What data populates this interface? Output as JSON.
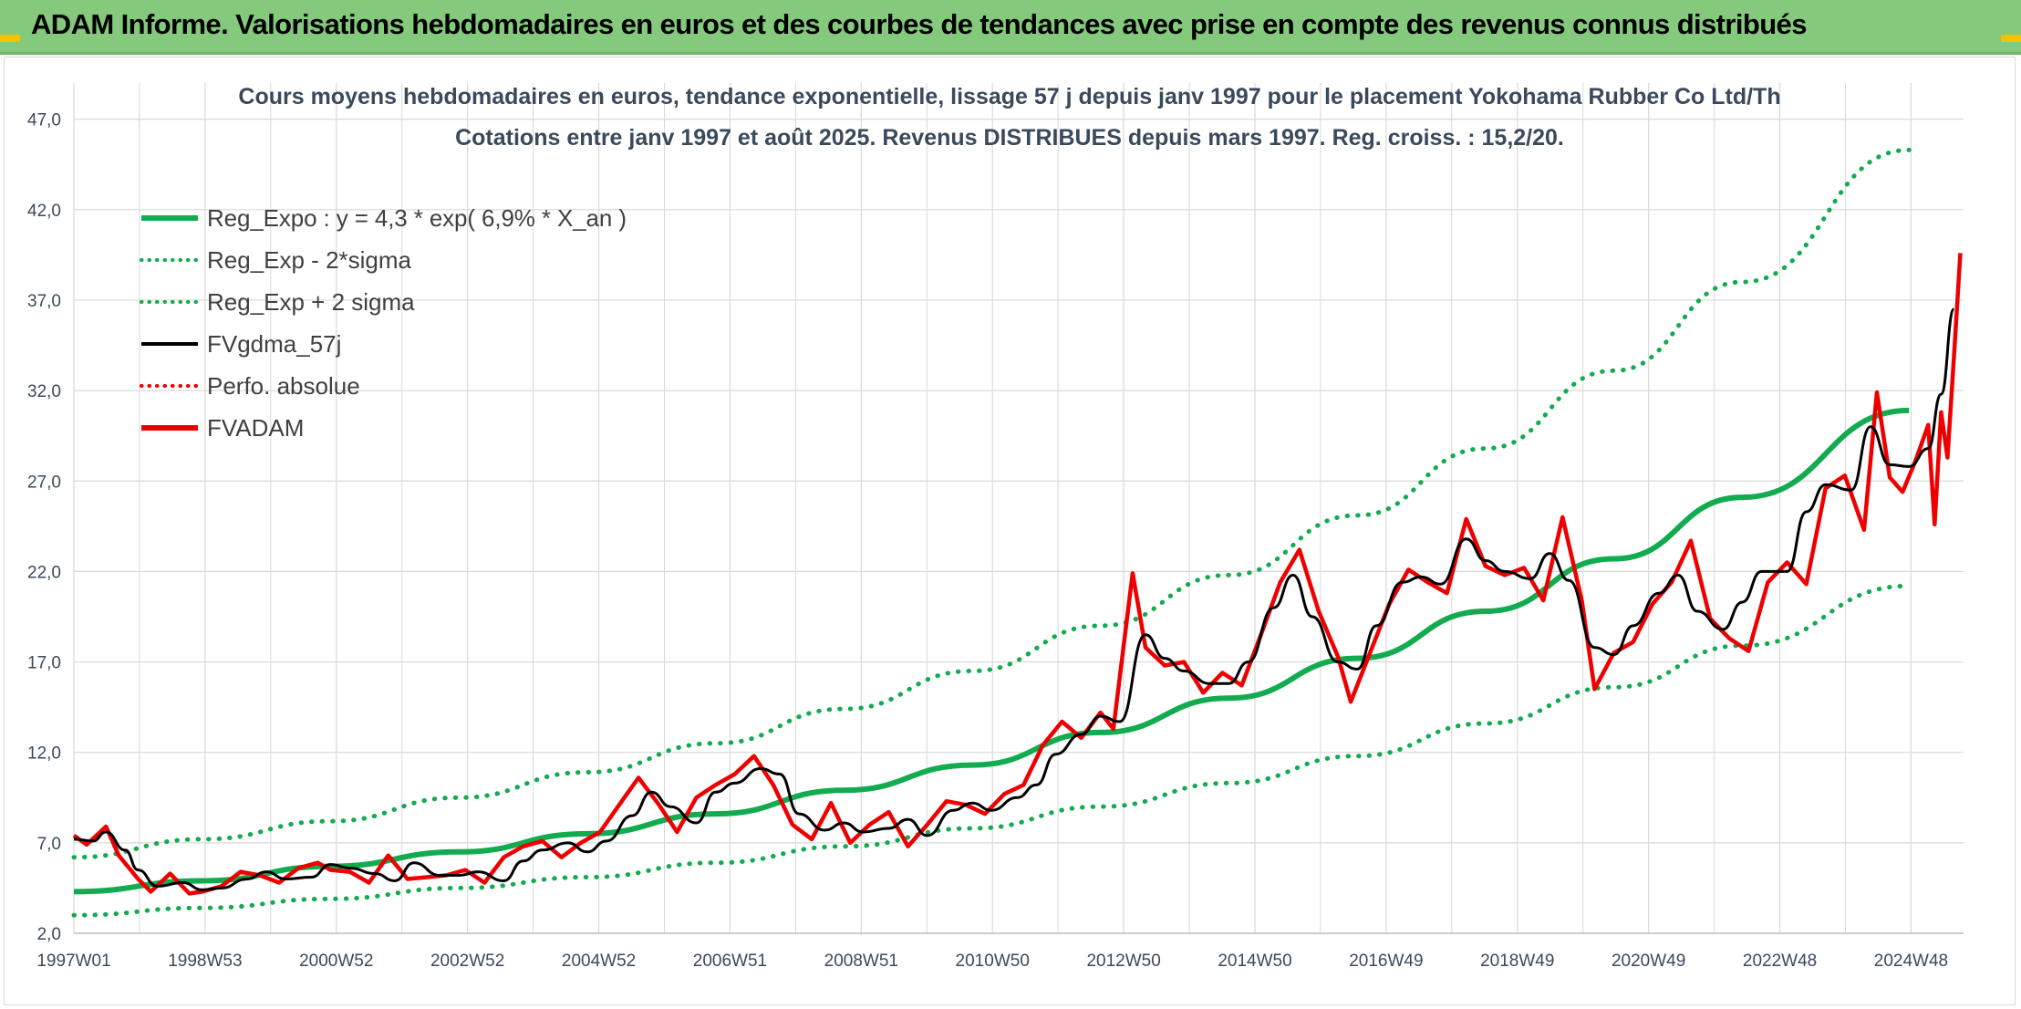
{
  "header": {
    "title": "ADAM Informe. Valorisations hebdomadaires en euros et des courbes de tendances avec prise en compte des revenus connus distribués"
  },
  "colors": {
    "banner": "#84c97c",
    "regression": "#12ab4f",
    "fvgdma": "#000000",
    "fvadam": "#ee0000",
    "perfo": "#ee0000",
    "grid": "#d9d9d9",
    "text": "#3a4a5c"
  },
  "chart_data": {
    "type": "line",
    "title": "Cours moyens hebdomadaires en euros, tendance exponentielle, lissage 57 j depuis janv 1997 pour le placement Yokohama Rubber Co Ltd/Th",
    "subtitle": "Cotations entre janv 1997 et août 2025. Revenus DISTRIBUES depuis mars 1997. Reg. croiss. : 15,2/20.",
    "xlabel": "",
    "ylabel": "",
    "x_range": [
      1997.0,
      2025.6
    ],
    "ylim": [
      2.0,
      49.0
    ],
    "y_ticks": [
      "2,0",
      "7,0",
      "12,0",
      "17,0",
      "22,0",
      "27,0",
      "32,0",
      "37,0",
      "42,0",
      "47,0"
    ],
    "x_tick_labels": [
      "1997W01",
      "1998W53",
      "2000W52",
      "2002W52",
      "2004W52",
      "2006W51",
      "2008W51",
      "2010W50",
      "2012W50",
      "2014W50",
      "2016W49",
      "2018W49",
      "2020W49",
      "2022W48",
      "2024W48"
    ],
    "grid": true,
    "legend_position": "top-left",
    "legend": [
      {
        "key": "reg",
        "label": "Reg_Expo : y = 4,3 * exp( 6,9% *  X_an )",
        "style": "solid-thick",
        "color": "#12ab4f"
      },
      {
        "key": "low",
        "label": "Reg_Exp - 2*sigma",
        "style": "dotted",
        "color": "#12ab4f"
      },
      {
        "key": "high",
        "label": "Reg_Exp + 2 sigma",
        "style": "dotted",
        "color": "#12ab4f"
      },
      {
        "key": "gdma",
        "label": "FVgdma_57j",
        "style": "solid",
        "color": "#000000"
      },
      {
        "key": "perfo",
        "label": "Perfo. absolue",
        "style": "dotted",
        "color": "#ee0000"
      },
      {
        "key": "adam",
        "label": "FVADAM",
        "style": "solid-thick",
        "color": "#ee0000"
      }
    ],
    "series": [
      {
        "key": "reg",
        "name": "Reg_Expo : y = 4,3 * exp( 6,9% *  X_an )",
        "points": [
          [
            1997.0,
            4.3
          ],
          [
            1999.0,
            4.9
          ],
          [
            2001.0,
            5.7
          ],
          [
            2003.0,
            6.5
          ],
          [
            2005.0,
            7.5
          ],
          [
            2007.0,
            8.6
          ],
          [
            2009.0,
            9.9
          ],
          [
            2011.0,
            11.3
          ],
          [
            2013.0,
            13.1
          ],
          [
            2015.0,
            15.0
          ],
          [
            2017.0,
            17.2
          ],
          [
            2019.0,
            19.8
          ],
          [
            2021.0,
            22.7
          ],
          [
            2023.0,
            26.1
          ],
          [
            2025.6,
            30.9
          ]
        ]
      },
      {
        "key": "low",
        "name": "Reg_Exp - 2*sigma",
        "points": [
          [
            1997.0,
            3.0
          ],
          [
            1999.0,
            3.4
          ],
          [
            2001.0,
            3.9
          ],
          [
            2003.0,
            4.5
          ],
          [
            2005.0,
            5.1
          ],
          [
            2007.0,
            5.9
          ],
          [
            2009.0,
            6.8
          ],
          [
            2011.0,
            7.8
          ],
          [
            2013.0,
            9.0
          ],
          [
            2015.0,
            10.3
          ],
          [
            2017.0,
            11.8
          ],
          [
            2019.0,
            13.6
          ],
          [
            2021.0,
            15.6
          ],
          [
            2023.0,
            17.9
          ],
          [
            2025.6,
            21.2
          ]
        ]
      },
      {
        "key": "high",
        "name": "Reg_Exp + 2 sigma",
        "points": [
          [
            1997.0,
            6.2
          ],
          [
            1999.0,
            7.2
          ],
          [
            2001.0,
            8.2
          ],
          [
            2003.0,
            9.5
          ],
          [
            2005.0,
            10.9
          ],
          [
            2007.0,
            12.5
          ],
          [
            2009.0,
            14.4
          ],
          [
            2011.0,
            16.5
          ],
          [
            2013.0,
            19.0
          ],
          [
            2015.0,
            21.8
          ],
          [
            2017.0,
            25.1
          ],
          [
            2019.0,
            28.8
          ],
          [
            2021.0,
            33.1
          ],
          [
            2023.0,
            38.0
          ],
          [
            2025.6,
            45.3
          ]
        ]
      },
      {
        "key": "gdma",
        "name": "FVgdma_57j",
        "points": [
          [
            1997.0,
            7.2
          ],
          [
            1997.3,
            7.1
          ],
          [
            1997.5,
            7.6
          ],
          [
            1997.8,
            6.6
          ],
          [
            1998.0,
            5.5
          ],
          [
            1998.3,
            4.6
          ],
          [
            1998.7,
            4.8
          ],
          [
            1999.0,
            4.4
          ],
          [
            1999.3,
            4.5
          ],
          [
            1999.7,
            5.0
          ],
          [
            2000.0,
            5.4
          ],
          [
            2000.3,
            5.0
          ],
          [
            2000.7,
            5.1
          ],
          [
            2001.0,
            5.8
          ],
          [
            2001.3,
            5.6
          ],
          [
            2001.7,
            5.3
          ],
          [
            2002.0,
            4.9
          ],
          [
            2002.3,
            5.9
          ],
          [
            2002.7,
            5.2
          ],
          [
            2003.0,
            5.2
          ],
          [
            2003.3,
            5.4
          ],
          [
            2003.7,
            4.9
          ],
          [
            2004.0,
            6.0
          ],
          [
            2004.3,
            6.6
          ],
          [
            2004.7,
            7.0
          ],
          [
            2005.0,
            6.5
          ],
          [
            2005.3,
            7.1
          ],
          [
            2005.7,
            8.5
          ],
          [
            2006.0,
            9.8
          ],
          [
            2006.3,
            9.0
          ],
          [
            2006.7,
            8.1
          ],
          [
            2007.0,
            9.8
          ],
          [
            2007.3,
            10.3
          ],
          [
            2007.7,
            11.1
          ],
          [
            2008.0,
            10.8
          ],
          [
            2008.3,
            8.6
          ],
          [
            2008.7,
            7.7
          ],
          [
            2009.0,
            8.1
          ],
          [
            2009.3,
            7.6
          ],
          [
            2009.7,
            7.8
          ],
          [
            2010.0,
            8.3
          ],
          [
            2010.3,
            7.4
          ],
          [
            2010.7,
            8.8
          ],
          [
            2011.0,
            9.2
          ],
          [
            2011.3,
            8.8
          ],
          [
            2011.7,
            9.5
          ],
          [
            2012.0,
            10.2
          ],
          [
            2012.3,
            11.9
          ],
          [
            2012.7,
            13.0
          ],
          [
            2013.0,
            14.0
          ],
          [
            2013.3,
            13.7
          ],
          [
            2013.7,
            18.5
          ],
          [
            2014.0,
            17.2
          ],
          [
            2014.3,
            16.5
          ],
          [
            2014.7,
            15.8
          ],
          [
            2015.0,
            15.8
          ],
          [
            2015.3,
            17.0
          ],
          [
            2015.7,
            20.0
          ],
          [
            2016.0,
            21.8
          ],
          [
            2016.3,
            19.5
          ],
          [
            2016.7,
            17.0
          ],
          [
            2017.0,
            16.6
          ],
          [
            2017.3,
            19.0
          ],
          [
            2017.7,
            21.4
          ],
          [
            2018.0,
            21.7
          ],
          [
            2018.3,
            21.3
          ],
          [
            2018.7,
            23.8
          ],
          [
            2019.0,
            22.6
          ],
          [
            2019.3,
            22.0
          ],
          [
            2019.7,
            21.6
          ],
          [
            2020.0,
            23.0
          ],
          [
            2020.3,
            21.5
          ],
          [
            2020.7,
            17.8
          ],
          [
            2021.0,
            17.4
          ],
          [
            2021.3,
            19.0
          ],
          [
            2021.7,
            20.8
          ],
          [
            2022.0,
            21.8
          ],
          [
            2022.3,
            19.8
          ],
          [
            2022.7,
            18.8
          ],
          [
            2023.0,
            20.3
          ],
          [
            2023.3,
            22.0
          ],
          [
            2023.7,
            22.0
          ],
          [
            2024.0,
            25.3
          ],
          [
            2024.3,
            26.8
          ],
          [
            2024.7,
            26.5
          ],
          [
            2025.0,
            30.0
          ],
          [
            2025.3,
            27.9
          ],
          [
            2025.6,
            27.8
          ],
          [
            2025.9,
            28.8
          ],
          [
            2026.1,
            31.8
          ],
          [
            2026.3,
            36.5
          ]
        ]
      },
      {
        "key": "adam",
        "name": "FVADAM",
        "points": [
          [
            1997.0,
            7.4
          ],
          [
            1997.2,
            6.9
          ],
          [
            1997.5,
            7.9
          ],
          [
            1997.7,
            6.3
          ],
          [
            1998.0,
            5.0
          ],
          [
            1998.2,
            4.3
          ],
          [
            1998.5,
            5.3
          ],
          [
            1998.8,
            4.2
          ],
          [
            1999.0,
            4.3
          ],
          [
            1999.3,
            4.6
          ],
          [
            1999.6,
            5.4
          ],
          [
            1999.9,
            5.2
          ],
          [
            2000.2,
            4.8
          ],
          [
            2000.5,
            5.6
          ],
          [
            2000.8,
            5.9
          ],
          [
            2001.0,
            5.5
          ],
          [
            2001.3,
            5.4
          ],
          [
            2001.6,
            4.8
          ],
          [
            2001.9,
            6.3
          ],
          [
            2002.2,
            5.0
          ],
          [
            2002.5,
            5.1
          ],
          [
            2002.8,
            5.2
          ],
          [
            2003.1,
            5.5
          ],
          [
            2003.4,
            4.8
          ],
          [
            2003.7,
            6.2
          ],
          [
            2004.0,
            6.8
          ],
          [
            2004.3,
            7.1
          ],
          [
            2004.6,
            6.2
          ],
          [
            2004.9,
            7.0
          ],
          [
            2005.2,
            7.6
          ],
          [
            2005.5,
            9.1
          ],
          [
            2005.8,
            10.6
          ],
          [
            2006.1,
            9.2
          ],
          [
            2006.4,
            7.6
          ],
          [
            2006.7,
            9.5
          ],
          [
            2007.0,
            10.2
          ],
          [
            2007.3,
            10.8
          ],
          [
            2007.6,
            11.8
          ],
          [
            2007.9,
            10.2
          ],
          [
            2008.2,
            8.0
          ],
          [
            2008.5,
            7.2
          ],
          [
            2008.8,
            9.2
          ],
          [
            2009.1,
            7.0
          ],
          [
            2009.4,
            8.0
          ],
          [
            2009.7,
            8.7
          ],
          [
            2010.0,
            6.8
          ],
          [
            2010.3,
            8.0
          ],
          [
            2010.6,
            9.3
          ],
          [
            2010.9,
            9.1
          ],
          [
            2011.2,
            8.6
          ],
          [
            2011.5,
            9.7
          ],
          [
            2011.8,
            10.2
          ],
          [
            2012.1,
            12.4
          ],
          [
            2012.4,
            13.7
          ],
          [
            2012.7,
            12.8
          ],
          [
            2013.0,
            14.2
          ],
          [
            2013.2,
            13.3
          ],
          [
            2013.5,
            21.9
          ],
          [
            2013.7,
            17.8
          ],
          [
            2014.0,
            16.8
          ],
          [
            2014.3,
            17.0
          ],
          [
            2014.6,
            15.3
          ],
          [
            2014.9,
            16.4
          ],
          [
            2015.2,
            15.7
          ],
          [
            2015.5,
            18.5
          ],
          [
            2015.8,
            21.4
          ],
          [
            2016.1,
            23.2
          ],
          [
            2016.4,
            19.8
          ],
          [
            2016.7,
            17.3
          ],
          [
            2016.9,
            14.8
          ],
          [
            2017.2,
            17.5
          ],
          [
            2017.5,
            20.2
          ],
          [
            2017.8,
            22.1
          ],
          [
            2018.1,
            21.4
          ],
          [
            2018.4,
            20.8
          ],
          [
            2018.7,
            24.9
          ],
          [
            2019.0,
            22.3
          ],
          [
            2019.3,
            21.8
          ],
          [
            2019.6,
            22.2
          ],
          [
            2019.9,
            20.4
          ],
          [
            2020.2,
            25.0
          ],
          [
            2020.5,
            20.4
          ],
          [
            2020.7,
            15.5
          ],
          [
            2021.0,
            17.5
          ],
          [
            2021.3,
            18.1
          ],
          [
            2021.6,
            20.2
          ],
          [
            2021.9,
            21.4
          ],
          [
            2022.2,
            23.7
          ],
          [
            2022.5,
            19.4
          ],
          [
            2022.8,
            18.3
          ],
          [
            2023.1,
            17.6
          ],
          [
            2023.4,
            21.4
          ],
          [
            2023.7,
            22.5
          ],
          [
            2024.0,
            21.3
          ],
          [
            2024.3,
            26.6
          ],
          [
            2024.6,
            27.3
          ],
          [
            2024.9,
            24.3
          ],
          [
            2025.1,
            31.9
          ],
          [
            2025.3,
            27.2
          ],
          [
            2025.5,
            26.4
          ],
          [
            2025.7,
            28.1
          ],
          [
            2025.9,
            30.1
          ],
          [
            2026.0,
            24.6
          ],
          [
            2026.1,
            30.8
          ],
          [
            2026.2,
            28.3
          ],
          [
            2026.3,
            33.8
          ],
          [
            2026.4,
            39.6
          ]
        ]
      }
    ]
  }
}
